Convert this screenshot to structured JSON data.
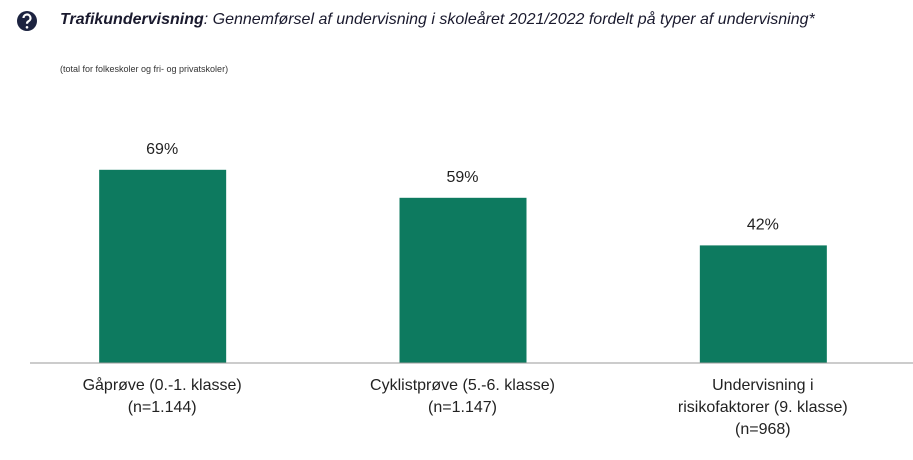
{
  "chart_data": {
    "type": "bar",
    "title_lead": "Trafikundervisning",
    "title": ": Gennemførsel af undervisning i skoleåret 2021/2022 fordelt på typer af undervisning*",
    "subtitle": "(total for folkeskoler og fri- og privatskoler)",
    "categories": [
      [
        "Gåprøve (0.-1. klasse)",
        "(n=1.144)"
      ],
      [
        "Cyklistprøve (5.-6. klasse)",
        "(n=1.147)"
      ],
      [
        "Undervisning i",
        "risikofaktorer (9. klasse)",
        "(n=968)"
      ]
    ],
    "values": [
      69,
      59,
      42
    ],
    "value_labels": [
      "69%",
      "59%",
      "42%"
    ],
    "color": "#0d7a5f",
    "ylim": [
      0,
      100
    ]
  }
}
